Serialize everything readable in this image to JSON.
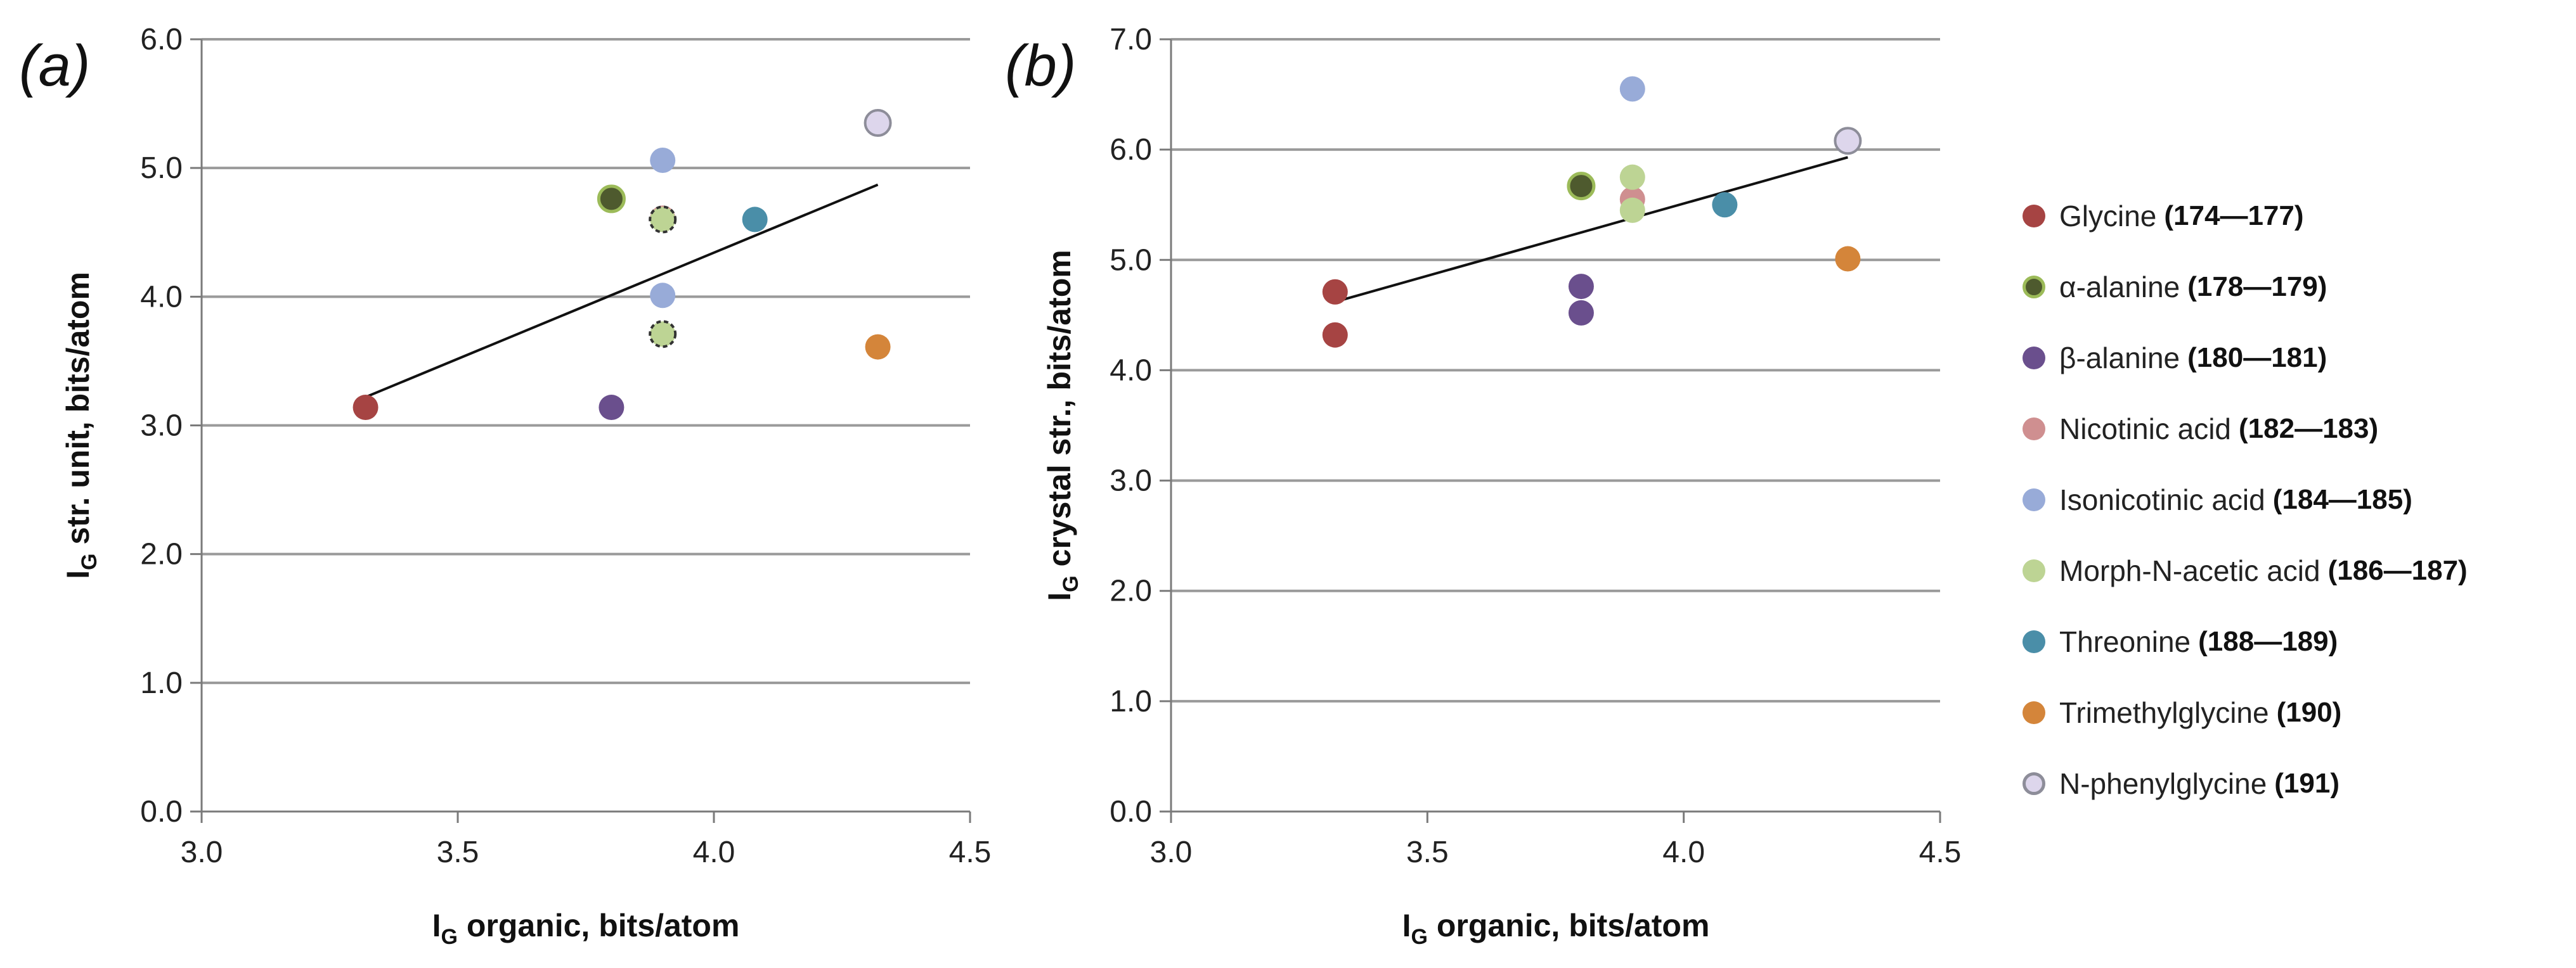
{
  "colors": {
    "glycine": "#a64443",
    "alpha_alanine": "#4e5a2e",
    "alpha_alanine_edge": "#9cbb59",
    "beta_alanine": "#6a4f8d",
    "nicotinic_acid": "#cf8f90",
    "isonicotinic_acid": "#98abd8",
    "morph_n_acetic_acid": "#bdd494",
    "threonine": "#4a8ea8",
    "trimethylglycine": "#d4853a",
    "n_phenylglycine": "#ddd6ec",
    "n_phenylglycine_edge": "#8d8d99",
    "gridline": "#9a9a9a",
    "axis": "#7a7a7a",
    "trendline": "#111111"
  },
  "legend": [
    {
      "name": "Glycine",
      "refs": "(174—177)",
      "color_key": "glycine"
    },
    {
      "name": "α-alanine",
      "refs": "(178—179)",
      "color_key": "alpha_alanine",
      "edge_key": "alpha_alanine_edge"
    },
    {
      "name": "β-alanine",
      "refs": "(180—181)",
      "color_key": "beta_alanine"
    },
    {
      "name": "Nicotinic acid",
      "refs": "(182—183)",
      "color_key": "nicotinic_acid"
    },
    {
      "name": "Isonicotinic acid",
      "refs": "(184—185)",
      "color_key": "isonicotinic_acid"
    },
    {
      "name": "Morph-N-acetic acid",
      "refs": "(186—187)",
      "color_key": "morph_n_acetic_acid"
    },
    {
      "name": "Threonine",
      "refs": "(188—189)",
      "color_key": "threonine"
    },
    {
      "name": "Trimethylglycine",
      "refs": "(190)",
      "color_key": "trimethylglycine"
    },
    {
      "name": "N-phenylglycine",
      "refs": "(191)",
      "color_key": "n_phenylglycine",
      "edge_key": "n_phenylglycine_edge"
    }
  ],
  "chart_data": [
    {
      "type": "scatter",
      "panel_label": "(a)",
      "xlabel_main": "I",
      "xlabel_sub": "G",
      "xlabel_rest": " organic, bits/atom",
      "ylabel_main": "I",
      "ylabel_sub": "G",
      "ylabel_rest": " str. unit, bits/atom",
      "xlim": [
        3.0,
        4.5
      ],
      "ylim": [
        0.0,
        6.0
      ],
      "xticks": [
        "3.0",
        "3.5",
        "4.0",
        "4.5"
      ],
      "yticks": [
        "0.0",
        "1.0",
        "2.0",
        "3.0",
        "4.0",
        "5.0",
        "6.0"
      ],
      "grid": "horizontal",
      "trendline": {
        "x": [
          3.32,
          4.32
        ],
        "y": [
          3.22,
          4.87
        ]
      },
      "points": [
        {
          "series": "glycine",
          "x": 3.32,
          "y": 3.14
        },
        {
          "series": "alpha_alanine",
          "x": 3.8,
          "y": 4.76
        },
        {
          "series": "beta_alanine",
          "x": 3.8,
          "y": 3.14
        },
        {
          "series": "isonicotinic_acid",
          "x": 3.9,
          "y": 5.06
        },
        {
          "series": "isonicotinic_acid",
          "x": 3.9,
          "y": 4.01
        },
        {
          "series": "nicotinic_acid",
          "x": 3.9,
          "y": 4.61
        },
        {
          "series": "morph_n_acetic_acid",
          "x": 3.9,
          "y": 4.6,
          "dashed": true
        },
        {
          "series": "morph_n_acetic_acid",
          "x": 3.9,
          "y": 3.71,
          "dashed": true
        },
        {
          "series": "threonine",
          "x": 4.08,
          "y": 4.6
        },
        {
          "series": "trimethylglycine",
          "x": 4.32,
          "y": 3.61
        },
        {
          "series": "n_phenylglycine",
          "x": 4.32,
          "y": 5.35
        }
      ]
    },
    {
      "type": "scatter",
      "panel_label": "(b)",
      "xlabel_main": "I",
      "xlabel_sub": "G",
      "xlabel_rest": " organic,  bits/atom",
      "ylabel_main": "I",
      "ylabel_sub": "G",
      "ylabel_rest": " crystal str., bits/atom",
      "xlim": [
        3.0,
        4.5
      ],
      "ylim": [
        0.0,
        7.0
      ],
      "xticks": [
        "3.0",
        "3.5",
        "4.0",
        "4.5"
      ],
      "yticks": [
        "0.0",
        "1.0",
        "2.0",
        "3.0",
        "4.0",
        "5.0",
        "6.0",
        "7.0"
      ],
      "grid": "horizontal",
      "trendline": {
        "x": [
          3.32,
          4.32
        ],
        "y": [
          4.62,
          5.93
        ]
      },
      "points": [
        {
          "series": "glycine",
          "x": 3.32,
          "y": 4.71
        },
        {
          "series": "glycine",
          "x": 3.32,
          "y": 4.32
        },
        {
          "series": "alpha_alanine",
          "x": 3.8,
          "y": 5.67
        },
        {
          "series": "beta_alanine",
          "x": 3.8,
          "y": 4.76
        },
        {
          "series": "beta_alanine",
          "x": 3.8,
          "y": 4.52
        },
        {
          "series": "nicotinic_acid",
          "x": 3.9,
          "y": 5.55
        },
        {
          "series": "isonicotinic_acid",
          "x": 3.9,
          "y": 6.55
        },
        {
          "series": "morph_n_acetic_acid",
          "x": 3.9,
          "y": 5.75
        },
        {
          "series": "morph_n_acetic_acid",
          "x": 3.9,
          "y": 5.45
        },
        {
          "series": "threonine",
          "x": 4.08,
          "y": 5.5
        },
        {
          "series": "trimethylglycine",
          "x": 4.32,
          "y": 5.01
        },
        {
          "series": "n_phenylglycine",
          "x": 4.32,
          "y": 6.08
        }
      ]
    }
  ]
}
